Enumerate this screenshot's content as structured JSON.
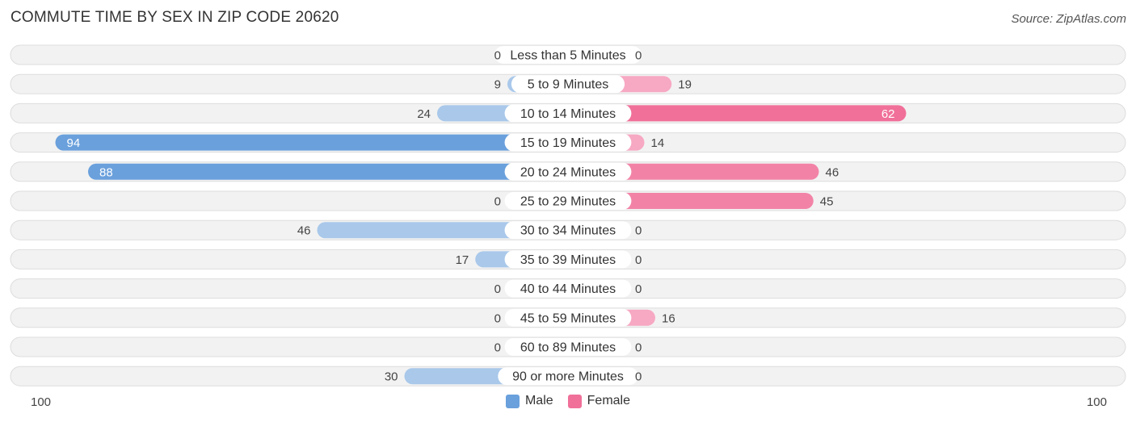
{
  "title": "COMMUTE TIME BY SEX IN ZIP CODE 20620",
  "source": "Source: ZipAtlas.com",
  "colors": {
    "male": "#6aa0dc",
    "male_light": "#a9c8ea",
    "female": "#f07099",
    "female_light": "#f7a8c2",
    "row_bg": "#f2f2f2",
    "row_border": "#dddddd"
  },
  "chart_data": {
    "type": "bar",
    "orientation": "diverging-horizontal",
    "categories": [
      "Less than 5 Minutes",
      "5 to 9 Minutes",
      "10 to 14 Minutes",
      "15 to 19 Minutes",
      "20 to 24 Minutes",
      "25 to 29 Minutes",
      "30 to 34 Minutes",
      "35 to 39 Minutes",
      "40 to 44 Minutes",
      "45 to 59 Minutes",
      "60 to 89 Minutes",
      "90 or more Minutes"
    ],
    "series": [
      {
        "name": "Male",
        "values": [
          0,
          9,
          24,
          94,
          88,
          0,
          46,
          17,
          0,
          0,
          0,
          30
        ]
      },
      {
        "name": "Female",
        "values": [
          0,
          19,
          62,
          14,
          46,
          45,
          0,
          0,
          0,
          16,
          0,
          0
        ]
      }
    ],
    "xlim": [
      -100,
      100
    ],
    "axis_left_label": "100",
    "axis_right_label": "100",
    "legend_position": "bottom-center"
  }
}
